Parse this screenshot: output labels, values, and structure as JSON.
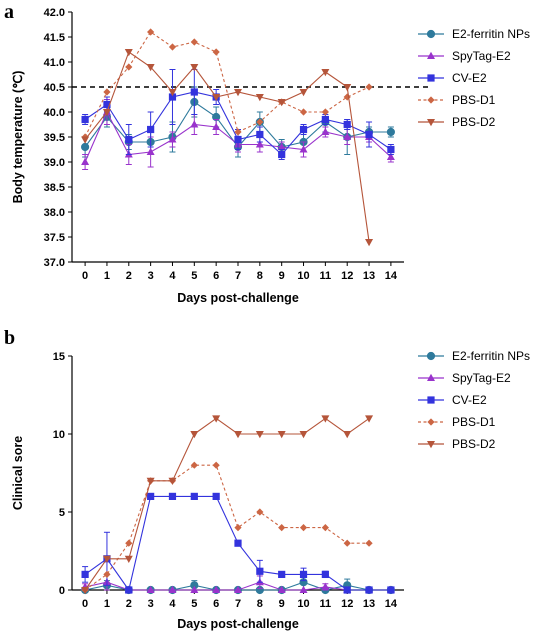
{
  "chart_data": [
    {
      "panel": "a",
      "type": "line",
      "title": "",
      "xlabel": "Days post-challenge",
      "ylabel": "Body temperature (℃)",
      "x": [
        0,
        1,
        2,
        3,
        4,
        5,
        6,
        7,
        8,
        9,
        10,
        11,
        12,
        13,
        14
      ],
      "xlim": [
        -0.6,
        14.6
      ],
      "ylim": [
        37.0,
        42.0
      ],
      "yticks": [
        37.0,
        37.5,
        38.0,
        38.5,
        39.0,
        39.5,
        40.0,
        40.5,
        41.0,
        41.5,
        42.0
      ],
      "yticklabels": [
        "37.0",
        "37.5",
        "38.0",
        "38.5",
        "39.0",
        "39.5",
        "40.0",
        "40.5",
        "41.0",
        "41.5",
        "42.0"
      ],
      "reference_line": 40.5,
      "legend_position": "right",
      "grid": false,
      "series": [
        {
          "name": "E2-ferritin NPs",
          "color": "#2E7A9C",
          "marker": "circle",
          "dash": "solid",
          "values": [
            39.3,
            39.9,
            39.4,
            39.4,
            39.5,
            40.2,
            39.9,
            39.3,
            39.8,
            39.3,
            39.4,
            39.8,
            39.5,
            39.6,
            39.6
          ],
          "errors": [
            0.2,
            0.2,
            0.15,
            0.25,
            0.3,
            0.3,
            0.2,
            0.2,
            0.2,
            0.15,
            0.2,
            0.2,
            0.35,
            0.1,
            0.1
          ]
        },
        {
          "name": "SpyTag-E2",
          "color": "#9933CC",
          "marker": "triangle-up",
          "dash": "solid",
          "values": [
            39.0,
            40.0,
            39.15,
            39.2,
            39.45,
            39.75,
            39.7,
            39.35,
            39.35,
            39.3,
            39.25,
            39.6,
            39.5,
            39.5,
            39.1
          ],
          "errors": [
            0.15,
            0.25,
            0.2,
            0.3,
            0.15,
            0.2,
            0.15,
            0.15,
            0.15,
            0.1,
            0.15,
            0.1,
            0.15,
            0.1,
            0.1
          ]
        },
        {
          "name": "CV-E2",
          "color": "#3333DD",
          "marker": "square",
          "dash": "solid",
          "values": [
            39.85,
            40.15,
            39.45,
            39.65,
            40.3,
            40.4,
            40.3,
            39.45,
            39.55,
            39.15,
            39.65,
            39.85,
            39.75,
            39.55,
            39.25
          ],
          "errors": [
            0.1,
            0.15,
            0.3,
            0.35,
            0.55,
            0.45,
            0.15,
            0.2,
            0.15,
            0.1,
            0.1,
            0.1,
            0.1,
            0.25,
            0.1
          ]
        },
        {
          "name": "PBS-D1",
          "color": "#CC6644",
          "marker": "diamond",
          "dash": "dashed",
          "values": [
            39.5,
            40.4,
            40.9,
            41.6,
            41.3,
            41.4,
            41.2,
            39.6,
            39.8,
            40.2,
            40.0,
            40.0,
            40.3,
            40.5,
            null
          ],
          "errors": []
        },
        {
          "name": "PBS-D2",
          "color": "#B5553A",
          "marker": "triangle-down",
          "dash": "solid",
          "values": [
            39.45,
            40.0,
            41.2,
            40.9,
            40.4,
            40.9,
            40.3,
            40.4,
            40.3,
            40.2,
            40.4,
            40.8,
            40.5,
            37.4,
            null
          ],
          "errors": []
        }
      ]
    },
    {
      "panel": "b",
      "type": "line",
      "title": "",
      "xlabel": "Days post-challenge",
      "ylabel": "Clinical sore",
      "x": [
        0,
        1,
        2,
        3,
        4,
        5,
        6,
        7,
        8,
        9,
        10,
        11,
        12,
        13,
        14
      ],
      "xlim": [
        -0.6,
        14.6
      ],
      "ylim": [
        0,
        15
      ],
      "yticks": [
        0,
        5,
        10,
        15
      ],
      "yticklabels": [
        "0",
        "5",
        "10",
        "15"
      ],
      "legend_position": "right",
      "grid": false,
      "series": [
        {
          "name": "E2-ferritin NPs",
          "color": "#2E7A9C",
          "marker": "circle",
          "dash": "solid",
          "values": [
            0,
            0.3,
            0,
            0,
            0,
            0.3,
            0,
            0,
            0,
            0,
            0.5,
            0,
            0.3,
            0,
            0
          ],
          "errors": [
            0,
            0.3,
            0,
            0,
            0,
            0.3,
            0,
            0,
            0,
            0,
            0.5,
            0,
            0.4,
            0,
            0
          ]
        },
        {
          "name": "SpyTag-E2",
          "color": "#9933CC",
          "marker": "triangle-up",
          "dash": "solid",
          "values": [
            0.2,
            0.5,
            0,
            0,
            0,
            0,
            0,
            0,
            0.5,
            0,
            0,
            0.2,
            0,
            0,
            0
          ],
          "errors": [
            0.2,
            0.5,
            0,
            0,
            0,
            0,
            0,
            0,
            0.4,
            0,
            0,
            0.2,
            0,
            0,
            0
          ]
        },
        {
          "name": "CV-E2",
          "color": "#3333DD",
          "marker": "square",
          "dash": "solid",
          "values": [
            1,
            2,
            0,
            6,
            6,
            6,
            6,
            3,
            1.2,
            1,
            1,
            1,
            0,
            0,
            0
          ],
          "errors": [
            0.5,
            1.7,
            0,
            0,
            0,
            0,
            0,
            0,
            0.7,
            0,
            0.4,
            0.2,
            0,
            0,
            0
          ]
        },
        {
          "name": "PBS-D1",
          "color": "#CC6644",
          "marker": "diamond",
          "dash": "dashed",
          "values": [
            0,
            1,
            3,
            7,
            7,
            8,
            8,
            4,
            5,
            4,
            4,
            4,
            3,
            3,
            null
          ],
          "errors": []
        },
        {
          "name": "PBS-D2",
          "color": "#B5553A",
          "marker": "triangle-down",
          "dash": "solid",
          "values": [
            0,
            2,
            2,
            7,
            7,
            10,
            11,
            10,
            10,
            10,
            10,
            11,
            10,
            11,
            null
          ],
          "errors": []
        }
      ]
    }
  ]
}
